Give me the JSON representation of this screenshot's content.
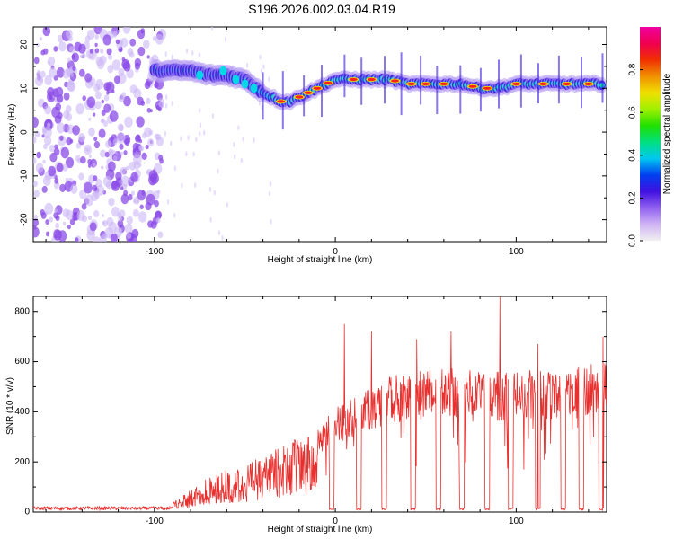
{
  "figure_title": "S196.2026.002.03.04.R19",
  "colors": {
    "snr_line": "#e8312f",
    "ridge_core": "#ff2020",
    "ridge_mid": "#00e0a0",
    "ridge_edge": "#3c1ee0",
    "noise": "#8a4ae8"
  },
  "colorbar_stops": [
    "#f0f0f0",
    "#d0b4f4",
    "#9060f0",
    "#4010e0",
    "#0040f0",
    "#00c8f0",
    "#00e080",
    "#20e000",
    "#a0f000",
    "#f0e000",
    "#f09000",
    "#f03000",
    "#f00050",
    "#f000a0"
  ],
  "chart_data": [
    {
      "type": "heatmap",
      "title": "S196.2026.002.03.04.R19",
      "xlabel": "Height of straight line (km)",
      "ylabel": "Frequency (Hz)",
      "xlim": [
        -167,
        150
      ],
      "ylim": [
        -25,
        24
      ],
      "xticks": [
        -100,
        0,
        100
      ],
      "xtick_labels": [
        "-100",
        "0",
        "100"
      ],
      "yticks": [
        20,
        10,
        0,
        -10,
        -20
      ],
      "ytick_labels": [
        "20",
        "10",
        "0",
        "-10",
        "-20"
      ],
      "ridge": {
        "x": [
          -100,
          -90,
          -80,
          -70,
          -60,
          -50,
          -40,
          -30,
          -25,
          -20,
          -15,
          -10,
          -5,
          0,
          10,
          20,
          30,
          40,
          50,
          60,
          70,
          80,
          90,
          100,
          110,
          120,
          130,
          145
        ],
        "freq": [
          14,
          14,
          14,
          13,
          13,
          12,
          9,
          7,
          7,
          8,
          9,
          10,
          11,
          12,
          12,
          12,
          12,
          11,
          11,
          11,
          11,
          10,
          10,
          11,
          11,
          11,
          11,
          11
        ]
      },
      "noise_region_x": [
        -167,
        -95
      ],
      "colorbar": {
        "label": "Normalized spectral amplitude",
        "range": [
          0.0,
          1.0
        ],
        "ticks": [
          0.0,
          0.2,
          0.4,
          0.6,
          0.8
        ],
        "tick_labels": [
          "0.0",
          "0.2",
          "0.4",
          "0.6",
          "0.8"
        ]
      }
    },
    {
      "type": "line",
      "xlabel": "Height of straight line (km)",
      "ylabel": "SNR (10 * v/v)",
      "xlim": [
        -167,
        150
      ],
      "ylim": [
        0,
        860
      ],
      "xticks": [
        -100,
        0,
        100
      ],
      "xtick_labels": [
        "-100",
        "0",
        "100"
      ],
      "yticks": [
        0,
        200,
        400,
        600,
        800
      ],
      "ytick_labels": [
        "0",
        "200",
        "400",
        "600",
        "800"
      ],
      "baseline_x": [
        -167,
        -90
      ],
      "baseline_value": 15,
      "envelope": {
        "x": [
          -90,
          -80,
          -70,
          -60,
          -50,
          -40,
          -30,
          -20,
          -10,
          0,
          10,
          20,
          30,
          40,
          50,
          60,
          70,
          80,
          90,
          100,
          110,
          120,
          130,
          140,
          150
        ],
        "y": [
          40,
          90,
          140,
          170,
          180,
          230,
          260,
          300,
          340,
          420,
          460,
          500,
          540,
          560,
          570,
          580,
          570,
          560,
          560,
          560,
          570,
          560,
          580,
          590,
          600
        ]
      },
      "dropouts_x": [
        -2,
        13,
        27,
        43,
        57,
        70,
        84,
        97,
        112,
        126,
        136,
        147
      ],
      "spikes": [
        {
          "x": 5,
          "y": 750
        },
        {
          "x": 20,
          "y": 720
        },
        {
          "x": 45,
          "y": 690
        },
        {
          "x": 64,
          "y": 720
        },
        {
          "x": 91,
          "y": 860
        },
        {
          "x": 112,
          "y": 670
        },
        {
          "x": 148,
          "y": 700
        }
      ]
    }
  ]
}
